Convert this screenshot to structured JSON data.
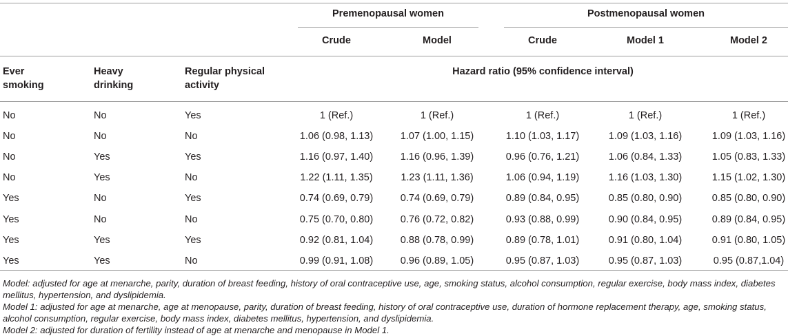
{
  "groups": {
    "premenopausal": "Premenopausal women",
    "postmenopausal": "Postmenopausal women"
  },
  "columns": {
    "pre_crude": "Crude",
    "pre_model": "Model",
    "post_crude": "Crude",
    "post_model1": "Model 1",
    "post_model2": "Model 2"
  },
  "row_headers": {
    "smoking": "Ever smoking",
    "drinking": "Heavy drinking",
    "activity": "Regular physical activity",
    "hr": "Hazard ratio (95% confidence interval)"
  },
  "rows": [
    {
      "smoking": "No",
      "drinking": "No",
      "activity": "Yes",
      "pre_crude": "1 (Ref.)",
      "pre_model": "1 (Ref.)",
      "post_crude": "1 (Ref.)",
      "post_model1": "1 (Ref.)",
      "post_model2": "1 (Ref.)"
    },
    {
      "smoking": "No",
      "drinking": "No",
      "activity": "No",
      "pre_crude": "1.06 (0.98, 1.13)",
      "pre_model": "1.07 (1.00, 1.15)",
      "post_crude": "1.10 (1.03, 1.17)",
      "post_model1": "1.09 (1.03, 1.16)",
      "post_model2": "1.09 (1.03, 1.16)"
    },
    {
      "smoking": "No",
      "drinking": "Yes",
      "activity": "Yes",
      "pre_crude": "1.16 (0.97, 1.40)",
      "pre_model": "1.16 (0.96, 1.39)",
      "post_crude": "0.96 (0.76, 1.21)",
      "post_model1": "1.06 (0.84, 1.33)",
      "post_model2": "1.05 (0.83, 1.33)"
    },
    {
      "smoking": "No",
      "drinking": "Yes",
      "activity": "No",
      "pre_crude": "1.22 (1.11, 1.35)",
      "pre_model": "1.23 (1.11, 1.36)",
      "post_crude": "1.06 (0.94, 1.19)",
      "post_model1": "1.16 (1.03, 1.30)",
      "post_model2": "1.15 (1.02, 1.30)"
    },
    {
      "smoking": "Yes",
      "drinking": "No",
      "activity": "Yes",
      "pre_crude": "0.74 (0.69, 0.79)",
      "pre_model": "0.74 (0.69, 0.79)",
      "post_crude": "0.89 (0.84, 0.95)",
      "post_model1": "0.85 (0.80, 0.90)",
      "post_model2": "0.85 (0.80, 0.90)"
    },
    {
      "smoking": "Yes",
      "drinking": "No",
      "activity": "No",
      "pre_crude": "0.75 (0.70, 0.80)",
      "pre_model": "0.76 (0.72, 0.82)",
      "post_crude": "0.93 (0.88, 0.99)",
      "post_model1": "0.90 (0.84, 0.95)",
      "post_model2": "0.89 (0.84, 0.95)"
    },
    {
      "smoking": "Yes",
      "drinking": "Yes",
      "activity": "Yes",
      "pre_crude": "0.92 (0.81, 1.04)",
      "pre_model": "0.88 (0.78, 0.99)",
      "post_crude": "0.89 (0.78, 1.01)",
      "post_model1": "0.91 (0.80, 1.04)",
      "post_model2": "0.91 (0.80, 1.05)"
    },
    {
      "smoking": "Yes",
      "drinking": "Yes",
      "activity": "No",
      "pre_crude": "0.99 (0.91, 1.08)",
      "pre_model": "0.96 (0.89, 1.05)",
      "post_crude": "0.95 (0.87, 1.03)",
      "post_model1": "0.95 (0.87, 1.03)",
      "post_model2": "0.95 (0.87,1.04)"
    }
  ],
  "notes": [
    "Model: adjusted for age at menarche, parity, duration of breast feeding, history of oral contraceptive use, age, smoking status, alcohol consumption, regular exercise, body mass index, diabetes mellitus, hypertension, and dyslipidemia.",
    "Model 1: adjusted for age at menarche, age at menopause, parity, duration of breast feeding, history of oral contraceptive use, duration of hormone replacement therapy, age, smoking status, alcohol consumption, regular exercise, body mass index, diabetes mellitus, hypertension, and dyslipidemia.",
    "Model 2: adjusted for duration of fertility instead of age at menarche and menopause in Model 1."
  ]
}
